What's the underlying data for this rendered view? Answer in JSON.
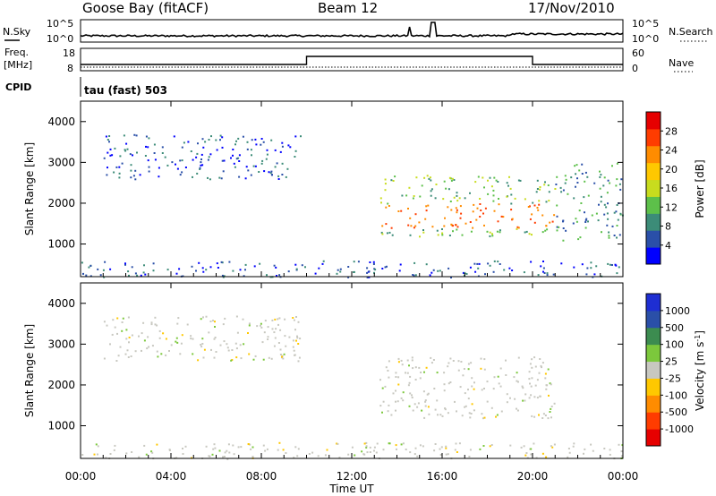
{
  "header": {
    "station": "Goose Bay (fitACF)",
    "beam": "Beam 12",
    "date": "17/Nov/2010"
  },
  "top_panels": {
    "nsky_label": "N.Sky",
    "nsky_ticks": [
      "10^5",
      "10^0"
    ],
    "nsearch_label": "N.Search",
    "nsearch_ticks": [
      "10^5",
      "10^0"
    ],
    "freq_label": "Freq.",
    "freq_unit": "[MHz]",
    "freq_ticks": [
      "18",
      "8"
    ],
    "nave_label": "Nave",
    "nave_ticks": [
      "60",
      "0"
    ],
    "cpid_label": "CPID",
    "cpid_value": "tau (fast) 503"
  },
  "chart_data": [
    {
      "type": "heatmap",
      "name": "power",
      "ylabel": "Slant Range [km]",
      "ylim": [
        200,
        4500
      ],
      "y_ticks": [
        "4000",
        "3000",
        "2000",
        "1000"
      ],
      "colorbar_label": "Power [dB]",
      "colorbar_ticks": [
        "28",
        "24",
        "20",
        "16",
        "12",
        "8",
        "4"
      ],
      "colors": [
        "#0000ff",
        "#2a4fa8",
        "#3c8c78",
        "#5dc04a",
        "#c8dc1e",
        "#ffc800",
        "#ff8c00",
        "#ff3c00",
        "#e60000"
      ],
      "regions": [
        {
          "t0": 1.0,
          "t1": 9.8,
          "r0": 2600,
          "r1": 3700,
          "level": "low"
        },
        {
          "t0": 13.2,
          "t1": 21.0,
          "r0": 1200,
          "r1": 2700,
          "level": "high"
        },
        {
          "t0": 21.0,
          "t1": 24.0,
          "r0": 1100,
          "r1": 3000,
          "level": "mid"
        },
        {
          "t0": 0.0,
          "t1": 24.0,
          "r0": 200,
          "r1": 600,
          "level": "low"
        }
      ]
    },
    {
      "type": "heatmap",
      "name": "velocity",
      "ylabel": "Slant Range [km]",
      "ylim": [
        200,
        4500
      ],
      "xlabel": "Time UT",
      "x_ticks": [
        "00:00",
        "04:00",
        "08:00",
        "12:00",
        "16:00",
        "20:00",
        "00:00"
      ],
      "y_ticks": [
        "4000",
        "3000",
        "2000",
        "1000"
      ],
      "colorbar_label": "Velocity [m s",
      "colorbar_sup": "-1",
      "colorbar_close": "]",
      "colorbar_ticks": [
        "1000",
        "500",
        "100",
        "25",
        "-25",
        "-100",
        "-500",
        "-1000"
      ],
      "colors": [
        "#1e2ed2",
        "#2a4fa8",
        "#3c8c50",
        "#7cc83c",
        "#c8c8c0",
        "#ffc800",
        "#ff8c00",
        "#ff3c00",
        "#e60000"
      ],
      "regions": [
        {
          "t0": 1.0,
          "t1": 9.8,
          "r0": 2600,
          "r1": 3700,
          "velocity": "ground"
        },
        {
          "t0": 13.2,
          "t1": 21.0,
          "r0": 1200,
          "r1": 2700,
          "velocity": "ground"
        },
        {
          "t0": 0.0,
          "t1": 24.0,
          "r0": 200,
          "r1": 600,
          "velocity": "ground"
        }
      ]
    }
  ]
}
